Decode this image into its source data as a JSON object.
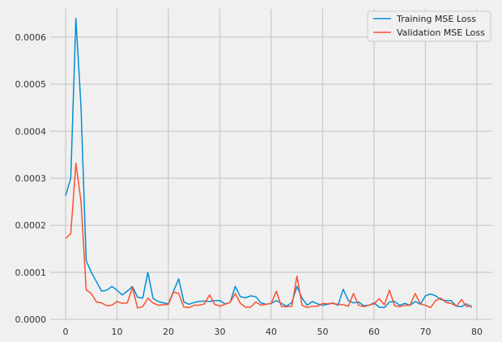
{
  "chart_data": {
    "type": "line",
    "title": "",
    "xlabel": "",
    "ylabel": "",
    "xlim": [
      -3,
      83
    ],
    "ylim": [
      0,
      0.00066
    ],
    "x_ticks": [
      0,
      10,
      20,
      30,
      40,
      50,
      60,
      70,
      80
    ],
    "y_ticks": [
      0,
      0.0001,
      0.0002,
      0.0003,
      0.0004,
      0.0005,
      0.0006
    ],
    "y_tick_labels": [
      "0.0000",
      "0.0001",
      "0.0002",
      "0.0003",
      "0.0004",
      "0.0005",
      "0.0006"
    ],
    "grid": true,
    "legend_position": "top-right",
    "x": [
      0,
      1,
      2,
      3,
      4,
      5,
      6,
      7,
      8,
      9,
      10,
      11,
      12,
      13,
      14,
      15,
      16,
      17,
      18,
      19,
      20,
      21,
      22,
      23,
      24,
      25,
      26,
      27,
      28,
      29,
      30,
      31,
      32,
      33,
      34,
      35,
      36,
      37,
      38,
      39,
      40,
      41,
      42,
      43,
      44,
      45,
      46,
      47,
      48,
      49,
      50,
      51,
      52,
      53,
      54,
      55,
      56,
      57,
      58,
      59,
      60,
      61,
      62,
      63,
      64,
      65,
      66,
      67,
      68,
      69,
      70,
      71,
      72,
      73,
      74,
      75,
      76,
      77,
      78,
      79
    ],
    "series": [
      {
        "name": "Training MSE Loss",
        "color": "#008fd5",
        "values": [
          0.000263,
          0.0003,
          0.00064,
          0.00045,
          0.000125,
          0.0001,
          8e-05,
          6e-05,
          6.2e-05,
          7e-05,
          6.2e-05,
          5.2e-05,
          6e-05,
          7e-05,
          4.7e-05,
          4.5e-05,
          0.0001,
          4.5e-05,
          3.8e-05,
          3.5e-05,
          3.3e-05,
          6e-05,
          8.6e-05,
          3.7e-05,
          3.2e-05,
          3.6e-05,
          3.8e-05,
          3.9e-05,
          3.8e-05,
          4e-05,
          4e-05,
          3.3e-05,
          3.6e-05,
          7e-05,
          4.8e-05,
          4.6e-05,
          5e-05,
          4.8e-05,
          3.5e-05,
          3.2e-05,
          3.4e-05,
          4e-05,
          3.4e-05,
          2.8e-05,
          3.6e-05,
          7e-05,
          4.5e-05,
          3e-05,
          3.8e-05,
          3.3e-05,
          3e-05,
          3.2e-05,
          3.5e-05,
          3e-05,
          6.4e-05,
          4e-05,
          3.5e-05,
          3.7e-05,
          2.9e-05,
          3e-05,
          3.5e-05,
          2.6e-05,
          2.5e-05,
          3.7e-05,
          3.8e-05,
          3e-05,
          3.4e-05,
          3e-05,
          3.8e-05,
          3.2e-05,
          5e-05,
          5.4e-05,
          5e-05,
          4.2e-05,
          4e-05,
          4e-05,
          2.8e-05,
          2.7e-05,
          3.3e-05,
          2.5e-05
        ]
      },
      {
        "name": "Validation MSE Loss",
        "color": "#fc4f30",
        "values": [
          0.000172,
          0.000182,
          0.000332,
          0.00025,
          6.3e-05,
          5.5e-05,
          3.7e-05,
          3.5e-05,
          2.9e-05,
          3e-05,
          3.8e-05,
          3.4e-05,
          3.5e-05,
          6.8e-05,
          2.4e-05,
          2.7e-05,
          4.5e-05,
          3.5e-05,
          3e-05,
          3.1e-05,
          3.2e-05,
          5.8e-05,
          5.5e-05,
          2.6e-05,
          2.5e-05,
          3e-05,
          3e-05,
          3.3e-05,
          5.2e-05,
          3.2e-05,
          2.8e-05,
          3.2e-05,
          3.6e-05,
          5.5e-05,
          3.4e-05,
          2.6e-05,
          2.6e-05,
          3.7e-05,
          3e-05,
          3.2e-05,
          3.4e-05,
          6e-05,
          2.7e-05,
          2.7e-05,
          2.8e-05,
          9.2e-05,
          3e-05,
          2.5e-05,
          2.8e-05,
          2.8e-05,
          3.4e-05,
          3.3e-05,
          3.4e-05,
          3.2e-05,
          3.1e-05,
          2.8e-05,
          5.5e-05,
          3e-05,
          2.7e-05,
          3e-05,
          3.3e-05,
          4.4e-05,
          3.1e-05,
          6.2e-05,
          2.9e-05,
          2.7e-05,
          3e-05,
          3e-05,
          5.5e-05,
          3.3e-05,
          3e-05,
          2.5e-05,
          4e-05,
          4.5e-05,
          3.6e-05,
          3.4e-05,
          2.8e-05,
          4.2e-05,
          2.7e-05,
          3e-05
        ]
      }
    ]
  }
}
